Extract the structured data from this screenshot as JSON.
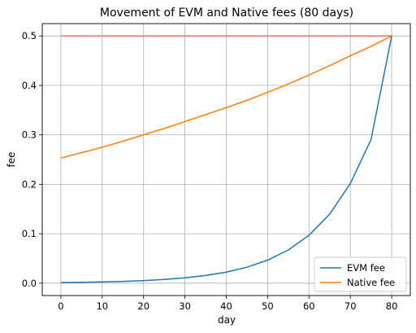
{
  "chart_data": {
    "type": "line",
    "title": "Movement of EVM and Native fees (80 days)",
    "xlabel": "day",
    "ylabel": "fee",
    "xlim": [
      -4.5,
      84.5
    ],
    "ylim": [
      -0.025,
      0.525
    ],
    "xticks": [
      0,
      10,
      20,
      30,
      40,
      50,
      60,
      70,
      80
    ],
    "yticks": [
      0.0,
      0.1,
      0.2,
      0.3,
      0.4,
      0.5
    ],
    "ytick_labels": [
      "0.0",
      "0.1",
      "0.2",
      "0.3",
      "0.4",
      "0.5"
    ],
    "grid": true,
    "legend_position": "lower-right",
    "series": [
      {
        "name": "EVM fee",
        "color": "#1f77b4",
        "x": [
          0,
          5,
          10,
          15,
          20,
          25,
          30,
          35,
          40,
          45,
          50,
          55,
          60,
          65,
          70,
          75,
          80
        ],
        "y": [
          0.0012,
          0.0018,
          0.0025,
          0.0036,
          0.0052,
          0.0075,
          0.0108,
          0.0156,
          0.0224,
          0.0323,
          0.0466,
          0.0672,
          0.0969,
          0.1397,
          0.2015,
          0.2906,
          0.5
        ]
      },
      {
        "name": "Native fee",
        "color": "#ff7f0e",
        "x": [
          0,
          5,
          10,
          15,
          20,
          25,
          30,
          35,
          40,
          45,
          50,
          55,
          60,
          65,
          70,
          75,
          80
        ],
        "y": [
          0.253,
          0.264,
          0.275,
          0.287,
          0.3,
          0.313,
          0.327,
          0.341,
          0.355,
          0.37,
          0.386,
          0.403,
          0.421,
          0.44,
          0.46,
          0.479,
          0.5
        ]
      },
      {
        "name": "",
        "color": "#ff6b6b",
        "x": [
          0,
          80
        ],
        "y": [
          0.5,
          0.5
        ]
      }
    ],
    "legend_entries": [
      "EVM fee",
      "Native fee"
    ]
  }
}
